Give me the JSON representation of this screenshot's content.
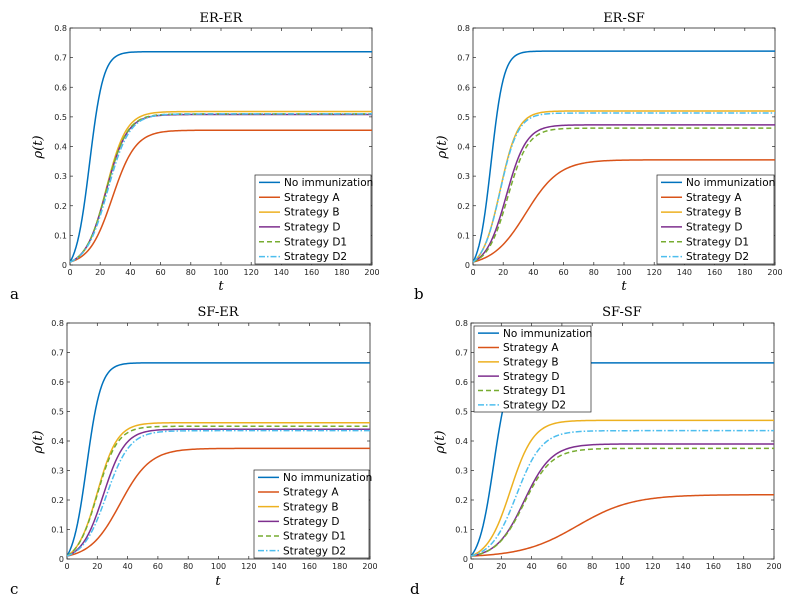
{
  "chart_data": [
    {
      "type": "line",
      "panel_letter": "a",
      "title": "ER-ER",
      "xlabel": "t",
      "ylabel": "ρ(t)",
      "xlim": [
        0,
        200
      ],
      "ylim": [
        0,
        0.8
      ],
      "xticks": [
        0,
        20,
        40,
        60,
        80,
        100,
        120,
        140,
        160,
        180,
        200
      ],
      "yticks": [
        0,
        0.1,
        0.2,
        0.3,
        0.4,
        0.5,
        0.6,
        0.7,
        0.8
      ],
      "legend_position": "bottom-right",
      "series": [
        {
          "name": "No immunization",
          "color": "#0072BD",
          "dash": "solid",
          "plateau": 0.72,
          "t_mid": 13,
          "rate": 0.22
        },
        {
          "name": "Strategy A",
          "color": "#D95319",
          "dash": "solid",
          "plateau": 0.455,
          "t_mid": 28,
          "rate": 0.13
        },
        {
          "name": "Strategy B",
          "color": "#EDB120",
          "dash": "solid",
          "plateau": 0.518,
          "t_mid": 24,
          "rate": 0.15
        },
        {
          "name": "Strategy D",
          "color": "#7E2F8E",
          "dash": "solid",
          "plateau": 0.508,
          "t_mid": 24,
          "rate": 0.145
        },
        {
          "name": "Strategy D1",
          "color": "#77AC30",
          "dash": "dashed",
          "plateau": 0.51,
          "t_mid": 24,
          "rate": 0.145
        },
        {
          "name": "Strategy D2",
          "color": "#4DBEEE",
          "dash": "dashdot",
          "plateau": 0.51,
          "t_mid": 25,
          "rate": 0.14
        }
      ]
    },
    {
      "type": "line",
      "panel_letter": "b",
      "title": "ER-SF",
      "xlabel": "t",
      "ylabel": "ρ(t)",
      "xlim": [
        0,
        200
      ],
      "ylim": [
        0,
        0.8
      ],
      "xticks": [
        0,
        20,
        40,
        60,
        80,
        100,
        120,
        140,
        160,
        180,
        200
      ],
      "yticks": [
        0,
        0.1,
        0.2,
        0.3,
        0.4,
        0.5,
        0.6,
        0.7,
        0.8
      ],
      "legend_position": "bottom-right",
      "series": [
        {
          "name": "No immunization",
          "color": "#0072BD",
          "dash": "solid",
          "plateau": 0.722,
          "t_mid": 12,
          "rate": 0.24
        },
        {
          "name": "Strategy A",
          "color": "#D95319",
          "dash": "solid",
          "plateau": 0.355,
          "t_mid": 35,
          "rate": 0.09
        },
        {
          "name": "Strategy B",
          "color": "#EDB120",
          "dash": "solid",
          "plateau": 0.52,
          "t_mid": 18,
          "rate": 0.17
        },
        {
          "name": "Strategy D",
          "color": "#7E2F8E",
          "dash": "solid",
          "plateau": 0.473,
          "t_mid": 22,
          "rate": 0.15
        },
        {
          "name": "Strategy D1",
          "color": "#77AC30",
          "dash": "dashed",
          "plateau": 0.462,
          "t_mid": 23,
          "rate": 0.15
        },
        {
          "name": "Strategy D2",
          "color": "#4DBEEE",
          "dash": "dashdot",
          "plateau": 0.513,
          "t_mid": 18,
          "rate": 0.17
        }
      ]
    },
    {
      "type": "line",
      "panel_letter": "c",
      "title": "SF-ER",
      "xlabel": "t",
      "ylabel": "ρ(t)",
      "xlim": [
        0,
        200
      ],
      "ylim": [
        0,
        0.8
      ],
      "xticks": [
        0,
        20,
        40,
        60,
        80,
        100,
        120,
        140,
        160,
        180,
        200
      ],
      "yticks": [
        0,
        0.1,
        0.2,
        0.3,
        0.4,
        0.5,
        0.6,
        0.7,
        0.8
      ],
      "legend_position": "bottom-right",
      "series": [
        {
          "name": "No immunization",
          "color": "#0072BD",
          "dash": "solid",
          "plateau": 0.665,
          "t_mid": 13,
          "rate": 0.21
        },
        {
          "name": "Strategy A",
          "color": "#D95319",
          "dash": "solid",
          "plateau": 0.375,
          "t_mid": 35,
          "rate": 0.1
        },
        {
          "name": "Strategy B",
          "color": "#EDB120",
          "dash": "solid",
          "plateau": 0.462,
          "t_mid": 20,
          "rate": 0.15
        },
        {
          "name": "Strategy D",
          "color": "#7E2F8E",
          "dash": "solid",
          "plateau": 0.44,
          "t_mid": 24,
          "rate": 0.14
        },
        {
          "name": "Strategy D1",
          "color": "#77AC30",
          "dash": "dashed",
          "plateau": 0.45,
          "t_mid": 20,
          "rate": 0.15
        },
        {
          "name": "Strategy D2",
          "color": "#4DBEEE",
          "dash": "dashdot",
          "plateau": 0.435,
          "t_mid": 26,
          "rate": 0.13
        }
      ]
    },
    {
      "type": "line",
      "panel_letter": "d",
      "title": "SF-SF",
      "xlabel": "t",
      "ylabel": "ρ(t)",
      "xlim": [
        0,
        200
      ],
      "ylim": [
        0,
        0.8
      ],
      "xticks": [
        0,
        20,
        40,
        60,
        80,
        100,
        120,
        140,
        160,
        180,
        200
      ],
      "yticks": [
        0,
        0.1,
        0.2,
        0.3,
        0.4,
        0.5,
        0.6,
        0.7,
        0.8
      ],
      "legend_position": "top-left",
      "series": [
        {
          "name": "No immunization",
          "color": "#0072BD",
          "dash": "solid",
          "plateau": 0.665,
          "t_mid": 15,
          "rate": 0.2
        },
        {
          "name": "Strategy A",
          "color": "#D95319",
          "dash": "solid",
          "plateau": 0.218,
          "t_mid": 70,
          "rate": 0.055
        },
        {
          "name": "Strategy B",
          "color": "#EDB120",
          "dash": "solid",
          "plateau": 0.47,
          "t_mid": 26,
          "rate": 0.13
        },
        {
          "name": "Strategy D",
          "color": "#7E2F8E",
          "dash": "solid",
          "plateau": 0.39,
          "t_mid": 35,
          "rate": 0.11
        },
        {
          "name": "Strategy D1",
          "color": "#77AC30",
          "dash": "dashed",
          "plateau": 0.375,
          "t_mid": 35,
          "rate": 0.11
        },
        {
          "name": "Strategy D2",
          "color": "#4DBEEE",
          "dash": "dashdot",
          "plateau": 0.435,
          "t_mid": 30,
          "rate": 0.12
        }
      ]
    }
  ]
}
